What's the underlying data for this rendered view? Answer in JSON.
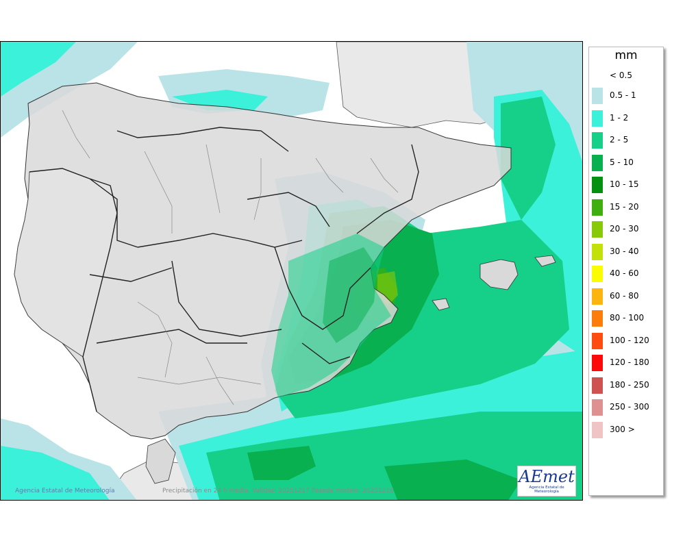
{
  "map": {
    "credit": "Agencia Estatal de Meteorología",
    "caption": "Precipitación en 24 h media. Validez: 20251217 Pasada modelo: 20251216",
    "logo_mark": "AEmet",
    "logo_sub": "Agencia Estatal de Meteorología"
  },
  "legend": {
    "unit": "mm",
    "first_label": "< 0.5",
    "classes": [
      {
        "label": "0.5 - 1",
        "color": "#b9e3e7"
      },
      {
        "label": "1 - 2",
        "color": "#3bf1da"
      },
      {
        "label": "2 - 5",
        "color": "#16cf89"
      },
      {
        "label": "5 - 10",
        "color": "#08b04f"
      },
      {
        "label": "10 - 15",
        "color": "#059110"
      },
      {
        "label": "15 - 20",
        "color": "#3faf10"
      },
      {
        "label": "20 - 30",
        "color": "#88c90a"
      },
      {
        "label": "30 - 40",
        "color": "#c3e008"
      },
      {
        "label": "40 - 60",
        "color": "#fcfc00"
      },
      {
        "label": "60 - 80",
        "color": "#fcb510"
      },
      {
        "label": "80 - 100",
        "color": "#fd7d0c"
      },
      {
        "label": "100 - 120",
        "color": "#fe4b10"
      },
      {
        "label": "120 - 180",
        "color": "#fc0a0a"
      },
      {
        "label": "180 - 250",
        "color": "#cf5252"
      },
      {
        "label": "250 - 300",
        "color": "#df9090"
      },
      {
        "label": "300 >",
        "color": "#f0c4c4"
      }
    ]
  }
}
